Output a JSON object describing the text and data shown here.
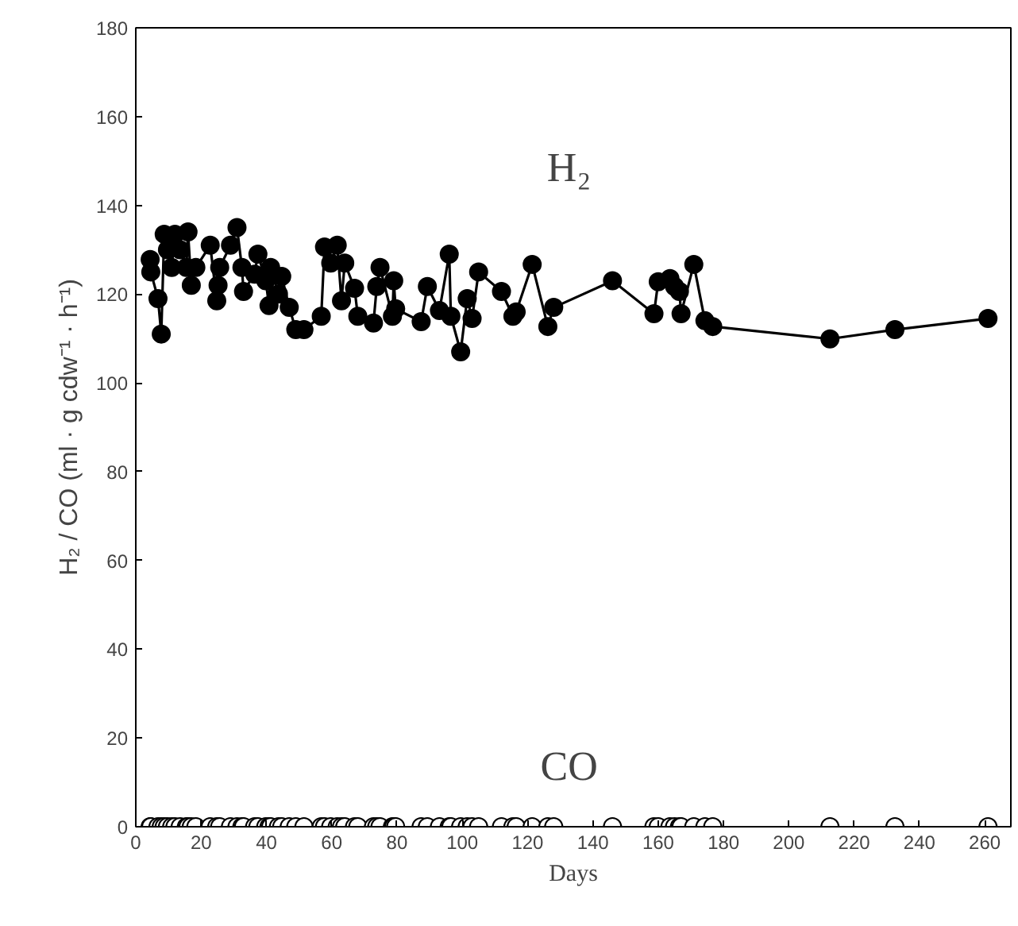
{
  "chart_data": {
    "type": "line",
    "xlabel": "Days",
    "ylabel": "H₂ / CO (ml · g cdw⁻¹ · h⁻¹)",
    "x": [
      4.4,
      4.6,
      6.8,
      7.8,
      8.7,
      9.7,
      11,
      12,
      13.6,
      15.5,
      16,
      17,
      18.4,
      22.8,
      24.8,
      25.2,
      25.7,
      29,
      31,
      32.5,
      33,
      36.4,
      37.4,
      39.8,
      40.8,
      41.3,
      43.7,
      44.7,
      47,
      49,
      51.5,
      56.8,
      57.8,
      59.7,
      61.7,
      63,
      64,
      67,
      68,
      72.8,
      73.8,
      74.8,
      78.6,
      79,
      79.6,
      87.4,
      89.3,
      93,
      96,
      96.5,
      99.5,
      101.5,
      103,
      105,
      112,
      115.5,
      116.5,
      121.4,
      126.2,
      128,
      146,
      158.7,
      160,
      163.6,
      165,
      166.5,
      167,
      170.9,
      174.3,
      176.7,
      212.6,
      232.5,
      261
    ],
    "series": [
      {
        "name": "H₂",
        "color": "#000000",
        "values": [
          127.8,
          125,
          119,
          111,
          133.5,
          130,
          126,
          133.5,
          130,
          126,
          134,
          122,
          126,
          131,
          118.5,
          122,
          126,
          131,
          135,
          126,
          120.6,
          124.5,
          129,
          123,
          117.4,
          126,
          120,
          124,
          117,
          112,
          112,
          115,
          130.6,
          127,
          131,
          118.5,
          127,
          121.3,
          115,
          113.5,
          121.7,
          126,
          115,
          123,
          116.7,
          113.8,
          121.7,
          116.3,
          129,
          115,
          107,
          119,
          114.5,
          125,
          120.6,
          115,
          116,
          126.7,
          112.7,
          117,
          123,
          115.6,
          122.8,
          123.5,
          121.7,
          120.6,
          115.6,
          126.7,
          114,
          112.7,
          109.9,
          112,
          114.5
        ]
      },
      {
        "name": "CO",
        "type": "scatter",
        "color": "#ffffff",
        "x": [
          4.4,
          4.6,
          6.8,
          7.8,
          8.7,
          9.7,
          11,
          12,
          13.6,
          15.5,
          16,
          17,
          18.4,
          22.8,
          24.8,
          25.7,
          29,
          31,
          32.5,
          33,
          36.4,
          37.4,
          39.8,
          40.8,
          41.3,
          43.7,
          44.7,
          47,
          49,
          51.5,
          56.8,
          57.8,
          59.7,
          61.7,
          63,
          64,
          67,
          68,
          72.8,
          73.8,
          74.8,
          78.6,
          79,
          79.6,
          87.4,
          89.3,
          93,
          96,
          96.5,
          99.5,
          101.5,
          103,
          105,
          112,
          115.5,
          116.5,
          121.4,
          126.2,
          128,
          146,
          158.7,
          160,
          163.6,
          165,
          166.5,
          167,
          170.9,
          174.3,
          176.7,
          212.6,
          232.5,
          261
        ],
        "values": [
          0,
          0,
          0,
          0,
          0,
          0,
          0,
          0,
          0,
          0,
          0,
          0,
          0,
          0,
          0,
          0,
          0,
          0,
          0,
          0,
          0,
          0,
          0,
          0,
          0,
          0,
          0,
          0,
          0,
          0,
          0,
          0,
          0,
          0,
          0,
          0,
          0,
          0,
          0,
          0,
          0,
          0,
          0,
          0,
          0,
          0,
          0,
          0,
          0,
          0,
          0,
          0,
          0,
          0,
          0,
          0,
          0,
          0,
          0,
          0,
          0,
          0,
          0,
          0,
          0,
          0,
          0,
          0,
          0,
          0,
          0,
          0
        ]
      }
    ],
    "xlim": [
      0,
      268
    ],
    "ylim": [
      0,
      180
    ],
    "xticks": [
      0,
      20,
      40,
      60,
      80,
      100,
      120,
      140,
      160,
      180,
      200,
      220,
      240,
      260
    ],
    "yticks": [
      0,
      20,
      40,
      60,
      80,
      100,
      120,
      140,
      160,
      180
    ],
    "marker": "circle",
    "line_style": "solid",
    "grid": false,
    "legend": false
  }
}
